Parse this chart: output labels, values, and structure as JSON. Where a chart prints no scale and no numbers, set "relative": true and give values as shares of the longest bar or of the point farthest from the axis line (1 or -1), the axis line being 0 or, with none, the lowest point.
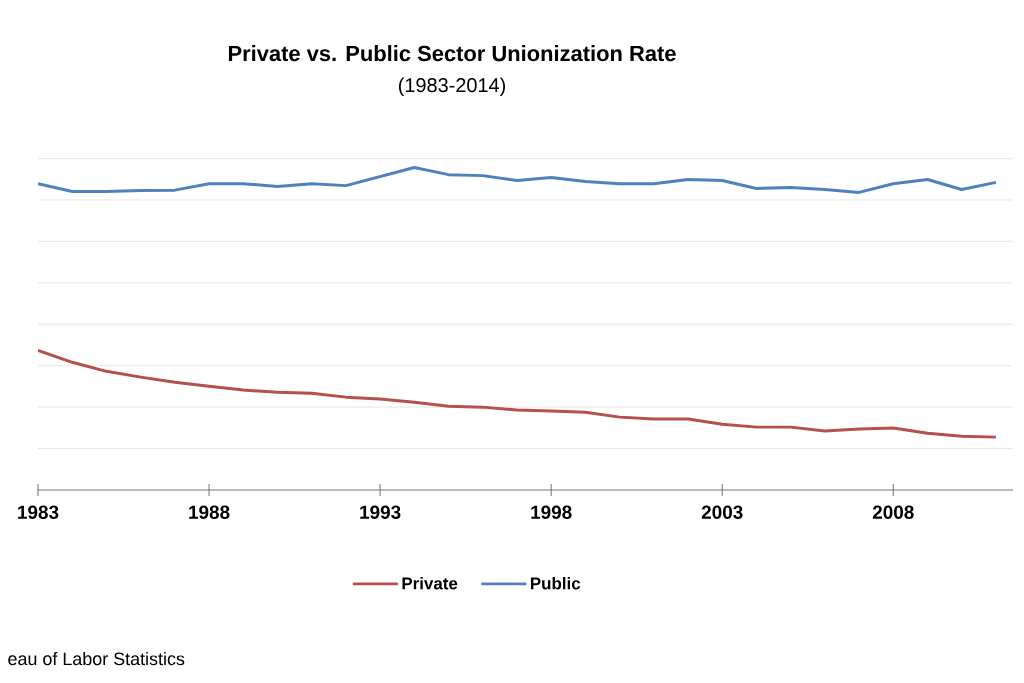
{
  "chart_data": {
    "type": "line",
    "title": "Private vs. Public Sector Unionization Rate",
    "subtitle": "(1983-2014)",
    "relative": true,
    "x": [
      1983,
      1984,
      1985,
      1986,
      1987,
      1988,
      1989,
      1990,
      1991,
      1992,
      1993,
      1994,
      1995,
      1996,
      1997,
      1998,
      1999,
      2000,
      2001,
      2002,
      2003,
      2004,
      2005,
      2006,
      2007,
      2008,
      2009,
      2010,
      2011
    ],
    "xlim": [
      1983,
      2011.5
    ],
    "xticks": [
      1983,
      1988,
      1993,
      1998,
      2003,
      2008
    ],
    "series": [
      {
        "name": "Private",
        "color": "#b5504d",
        "values": [
          0.433,
          0.396,
          0.368,
          0.35,
          0.334,
          0.322,
          0.31,
          0.303,
          0.3,
          0.288,
          0.282,
          0.272,
          0.26,
          0.257,
          0.248,
          0.245,
          0.241,
          0.226,
          0.22,
          0.22,
          0.204,
          0.195,
          0.195,
          0.183,
          0.189,
          0.192,
          0.176,
          0.167,
          0.164
        ]
      },
      {
        "name": "Public",
        "color": "#4f81bd",
        "values": [
          0.95,
          0.926,
          0.926,
          0.929,
          0.93,
          0.95,
          0.95,
          0.941,
          0.95,
          0.944,
          0.972,
          1,
          0.978,
          0.975,
          0.96,
          0.969,
          0.957,
          0.95,
          0.95,
          0.963,
          0.96,
          0.935,
          0.938,
          0.932,
          0.923,
          0.95,
          0.963,
          0.932,
          0.954
        ]
      }
    ],
    "grid": "y",
    "legend": "bottom",
    "marker": "none",
    "line_style": "solid",
    "annotations": [
      "eau of Labor Statistics"
    ]
  }
}
